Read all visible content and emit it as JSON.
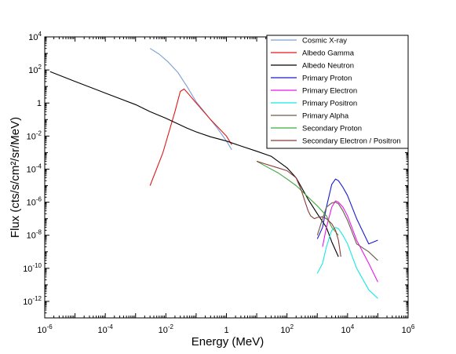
{
  "chart_data": {
    "type": "line",
    "xlabel": "Energy (MeV)",
    "ylabel": "Flux (cts/s/cm²/sr/MeV)",
    "x_scale": "log",
    "y_scale": "log",
    "xlim": [
      1e-06,
      1000000.0
    ],
    "ylim": [
      1e-13,
      10000.0
    ],
    "x_ticks": [
      {
        "value": 1e-06,
        "base": "10",
        "exp": "-6"
      },
      {
        "value": 0.0001,
        "base": "10",
        "exp": "-4"
      },
      {
        "value": 0.01,
        "base": "10",
        "exp": "-2"
      },
      {
        "value": 1,
        "base": "1",
        "exp": ""
      },
      {
        "value": 100,
        "base": "10",
        "exp": "2"
      },
      {
        "value": 10000.0,
        "base": "10",
        "exp": "4"
      },
      {
        "value": 1000000.0,
        "base": "10",
        "exp": "6"
      }
    ],
    "y_ticks": [
      {
        "value": 10000.0,
        "base": "10",
        "exp": "4"
      },
      {
        "value": 100,
        "base": "10",
        "exp": "2"
      },
      {
        "value": 1,
        "base": "1",
        "exp": ""
      },
      {
        "value": 0.01,
        "base": "10",
        "exp": "-2"
      },
      {
        "value": 0.0001,
        "base": "10",
        "exp": "-4"
      },
      {
        "value": 1e-06,
        "base": "10",
        "exp": "-6"
      },
      {
        "value": 1e-08,
        "base": "10",
        "exp": "-8"
      },
      {
        "value": 1e-10,
        "base": "10",
        "exp": "-10"
      },
      {
        "value": 1e-12,
        "base": "10",
        "exp": "-12"
      }
    ],
    "legend_position": "top-right",
    "grid": false,
    "series": [
      {
        "name": "Cosmic X-ray",
        "color": "#7b9fd4",
        "x": [
          0.003,
          0.006,
          0.012,
          0.025,
          0.05,
          0.1,
          0.2,
          0.5,
          1,
          1.5
        ],
        "y": [
          2000,
          900,
          300,
          70,
          10,
          1.2,
          0.25,
          0.03,
          0.005,
          0.0015
        ]
      },
      {
        "name": "Albedo Gamma",
        "color": "#e01818",
        "x": [
          0.003,
          0.008,
          0.02,
          0.03,
          0.04,
          0.06,
          0.1,
          0.3,
          1,
          1.5
        ],
        "y": [
          1e-05,
          0.001,
          0.3,
          5,
          7,
          3,
          1,
          0.1,
          0.01,
          0.003
        ]
      },
      {
        "name": "Albedo Neutron",
        "color": "#000000",
        "x": [
          1.5e-06,
          1e-05,
          0.0001,
          0.001,
          0.003,
          0.01,
          0.05,
          0.1,
          0.3,
          1,
          3,
          10,
          30,
          100,
          200,
          300,
          500,
          1000,
          2000,
          3000,
          5000
        ],
        "y": [
          80,
          20,
          4,
          0.8,
          0.3,
          0.12,
          0.03,
          0.018,
          0.009,
          0.005,
          0.0025,
          0.0012,
          0.0006,
          0.00012,
          3e-05,
          8e-06,
          1.5e-06,
          2e-07,
          3e-08,
          4e-09,
          5e-10
        ]
      },
      {
        "name": "Primary Proton",
        "color": "#1a1ad0",
        "x": [
          1000,
          1500,
          2000,
          3000,
          4000,
          5000,
          7000,
          10000,
          20000,
          50000,
          100000
        ],
        "y": [
          6e-09,
          3e-08,
          5e-07,
          1.2e-05,
          2.5e-05,
          2e-05,
          8e-06,
          2.5e-06,
          1e-07,
          3e-09,
          5e-09
        ]
      },
      {
        "name": "Primary Electron",
        "color": "#e818e8",
        "x": [
          1500,
          2000,
          3000,
          4000,
          5000,
          7000,
          10000,
          20000,
          50000,
          100000
        ],
        "y": [
          2e-09,
          3e-08,
          5e-07,
          1.2e-06,
          1e-06,
          5e-07,
          1.5e-07,
          5e-09,
          2e-10,
          1.5e-11
        ]
      },
      {
        "name": "Primary Positron",
        "color": "#18e8e8",
        "x": [
          1000,
          1500,
          2000,
          3000,
          4000,
          5000,
          7000,
          10000,
          20000,
          50000,
          100000
        ],
        "y": [
          5e-11,
          2e-10,
          2e-09,
          2e-08,
          3e-08,
          2.5e-08,
          1e-08,
          3e-09,
          1e-10,
          5e-12,
          1.5e-12
        ]
      },
      {
        "name": "Primary Alpha",
        "color": "#6b5b4b",
        "x": [
          1000,
          1500,
          2000,
          3000,
          4000,
          5000,
          7000,
          10000,
          20000,
          50000,
          100000
        ],
        "y": [
          1e-08,
          1e-07,
          5e-07,
          9e-07,
          1e-06,
          8e-07,
          3e-07,
          8e-08,
          3e-09,
          1e-09,
          3e-10
        ]
      },
      {
        "name": "Secondary Proton",
        "color": "#3caa3c",
        "x": [
          10,
          20,
          50,
          100,
          200,
          300,
          500,
          1000,
          2000,
          3000,
          5000
        ],
        "y": [
          0.0003,
          0.00015,
          6e-05,
          2.5e-05,
          1e-05,
          5e-06,
          2e-06,
          6e-07,
          1.5e-07,
          3e-08,
          1e-08
        ]
      },
      {
        "name": "Secondary Electron / Positron",
        "color": "#8b3a3a",
        "x": [
          10,
          20,
          50,
          100,
          200,
          300,
          400,
          500,
          600,
          800,
          1000,
          1500,
          2000,
          3000,
          4000,
          5000,
          6000
        ],
        "y": [
          0.0003,
          0.0002,
          0.00012,
          8e-05,
          3e-05,
          5e-06,
          1e-06,
          3e-07,
          1.5e-07,
          1e-07,
          1.2e-07,
          1.3e-07,
          1e-07,
          5e-08,
          2e-08,
          5e-09,
          5e-10
        ]
      }
    ]
  }
}
